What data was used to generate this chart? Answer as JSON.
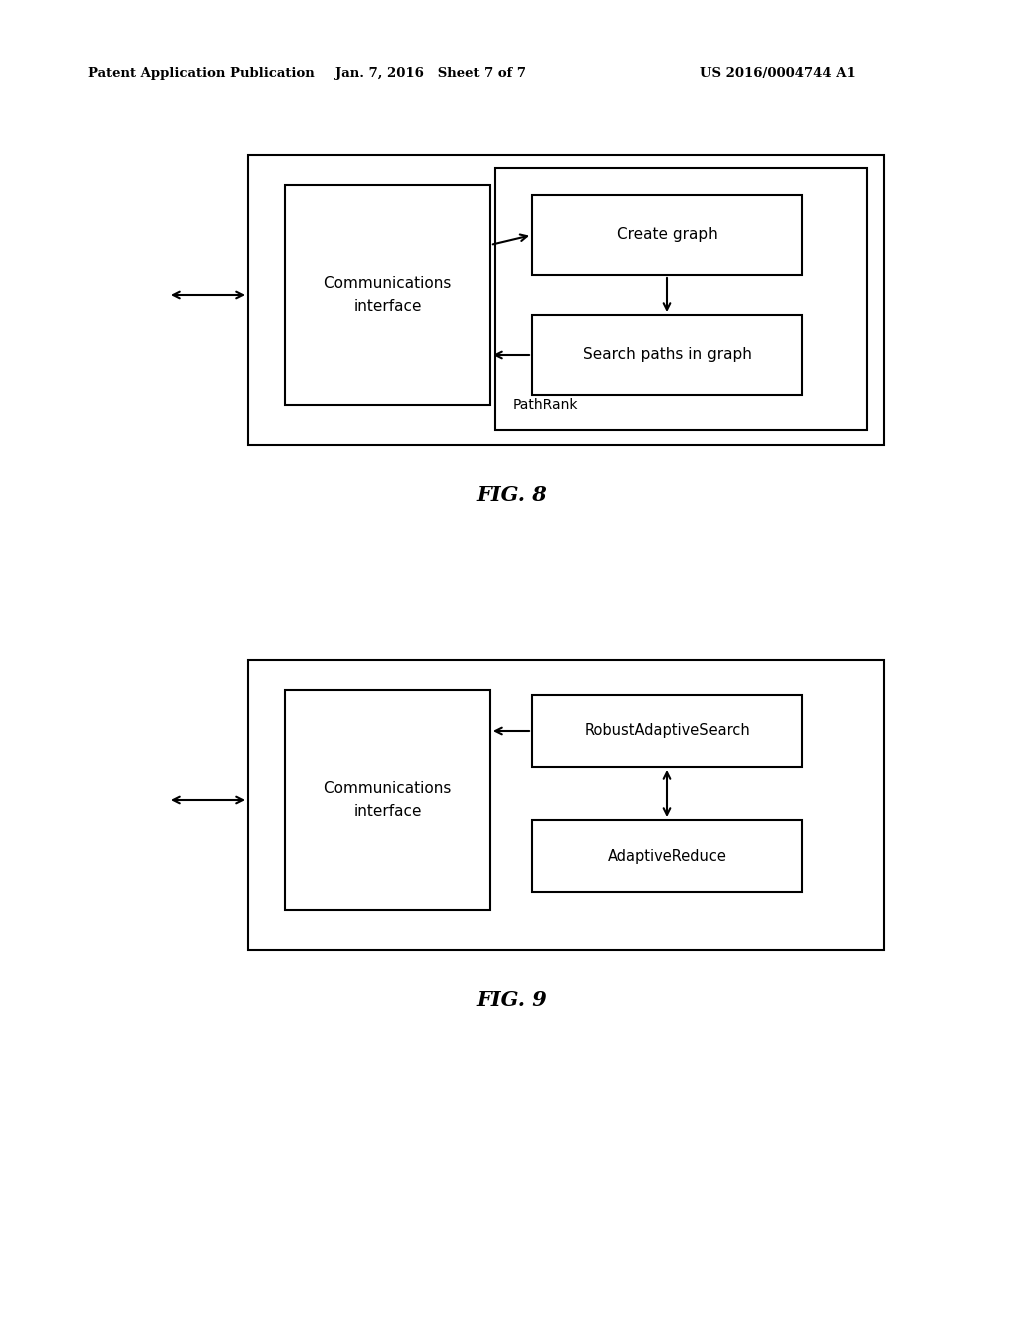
{
  "header_left": "Patent Application Publication",
  "header_mid": "Jan. 7, 2016   Sheet 7 of 7",
  "header_right": "US 2016/0004744 A1",
  "fig8_label": "FIG. 8",
  "fig9_label": "FIG. 9",
  "bg_color": "#ffffff"
}
